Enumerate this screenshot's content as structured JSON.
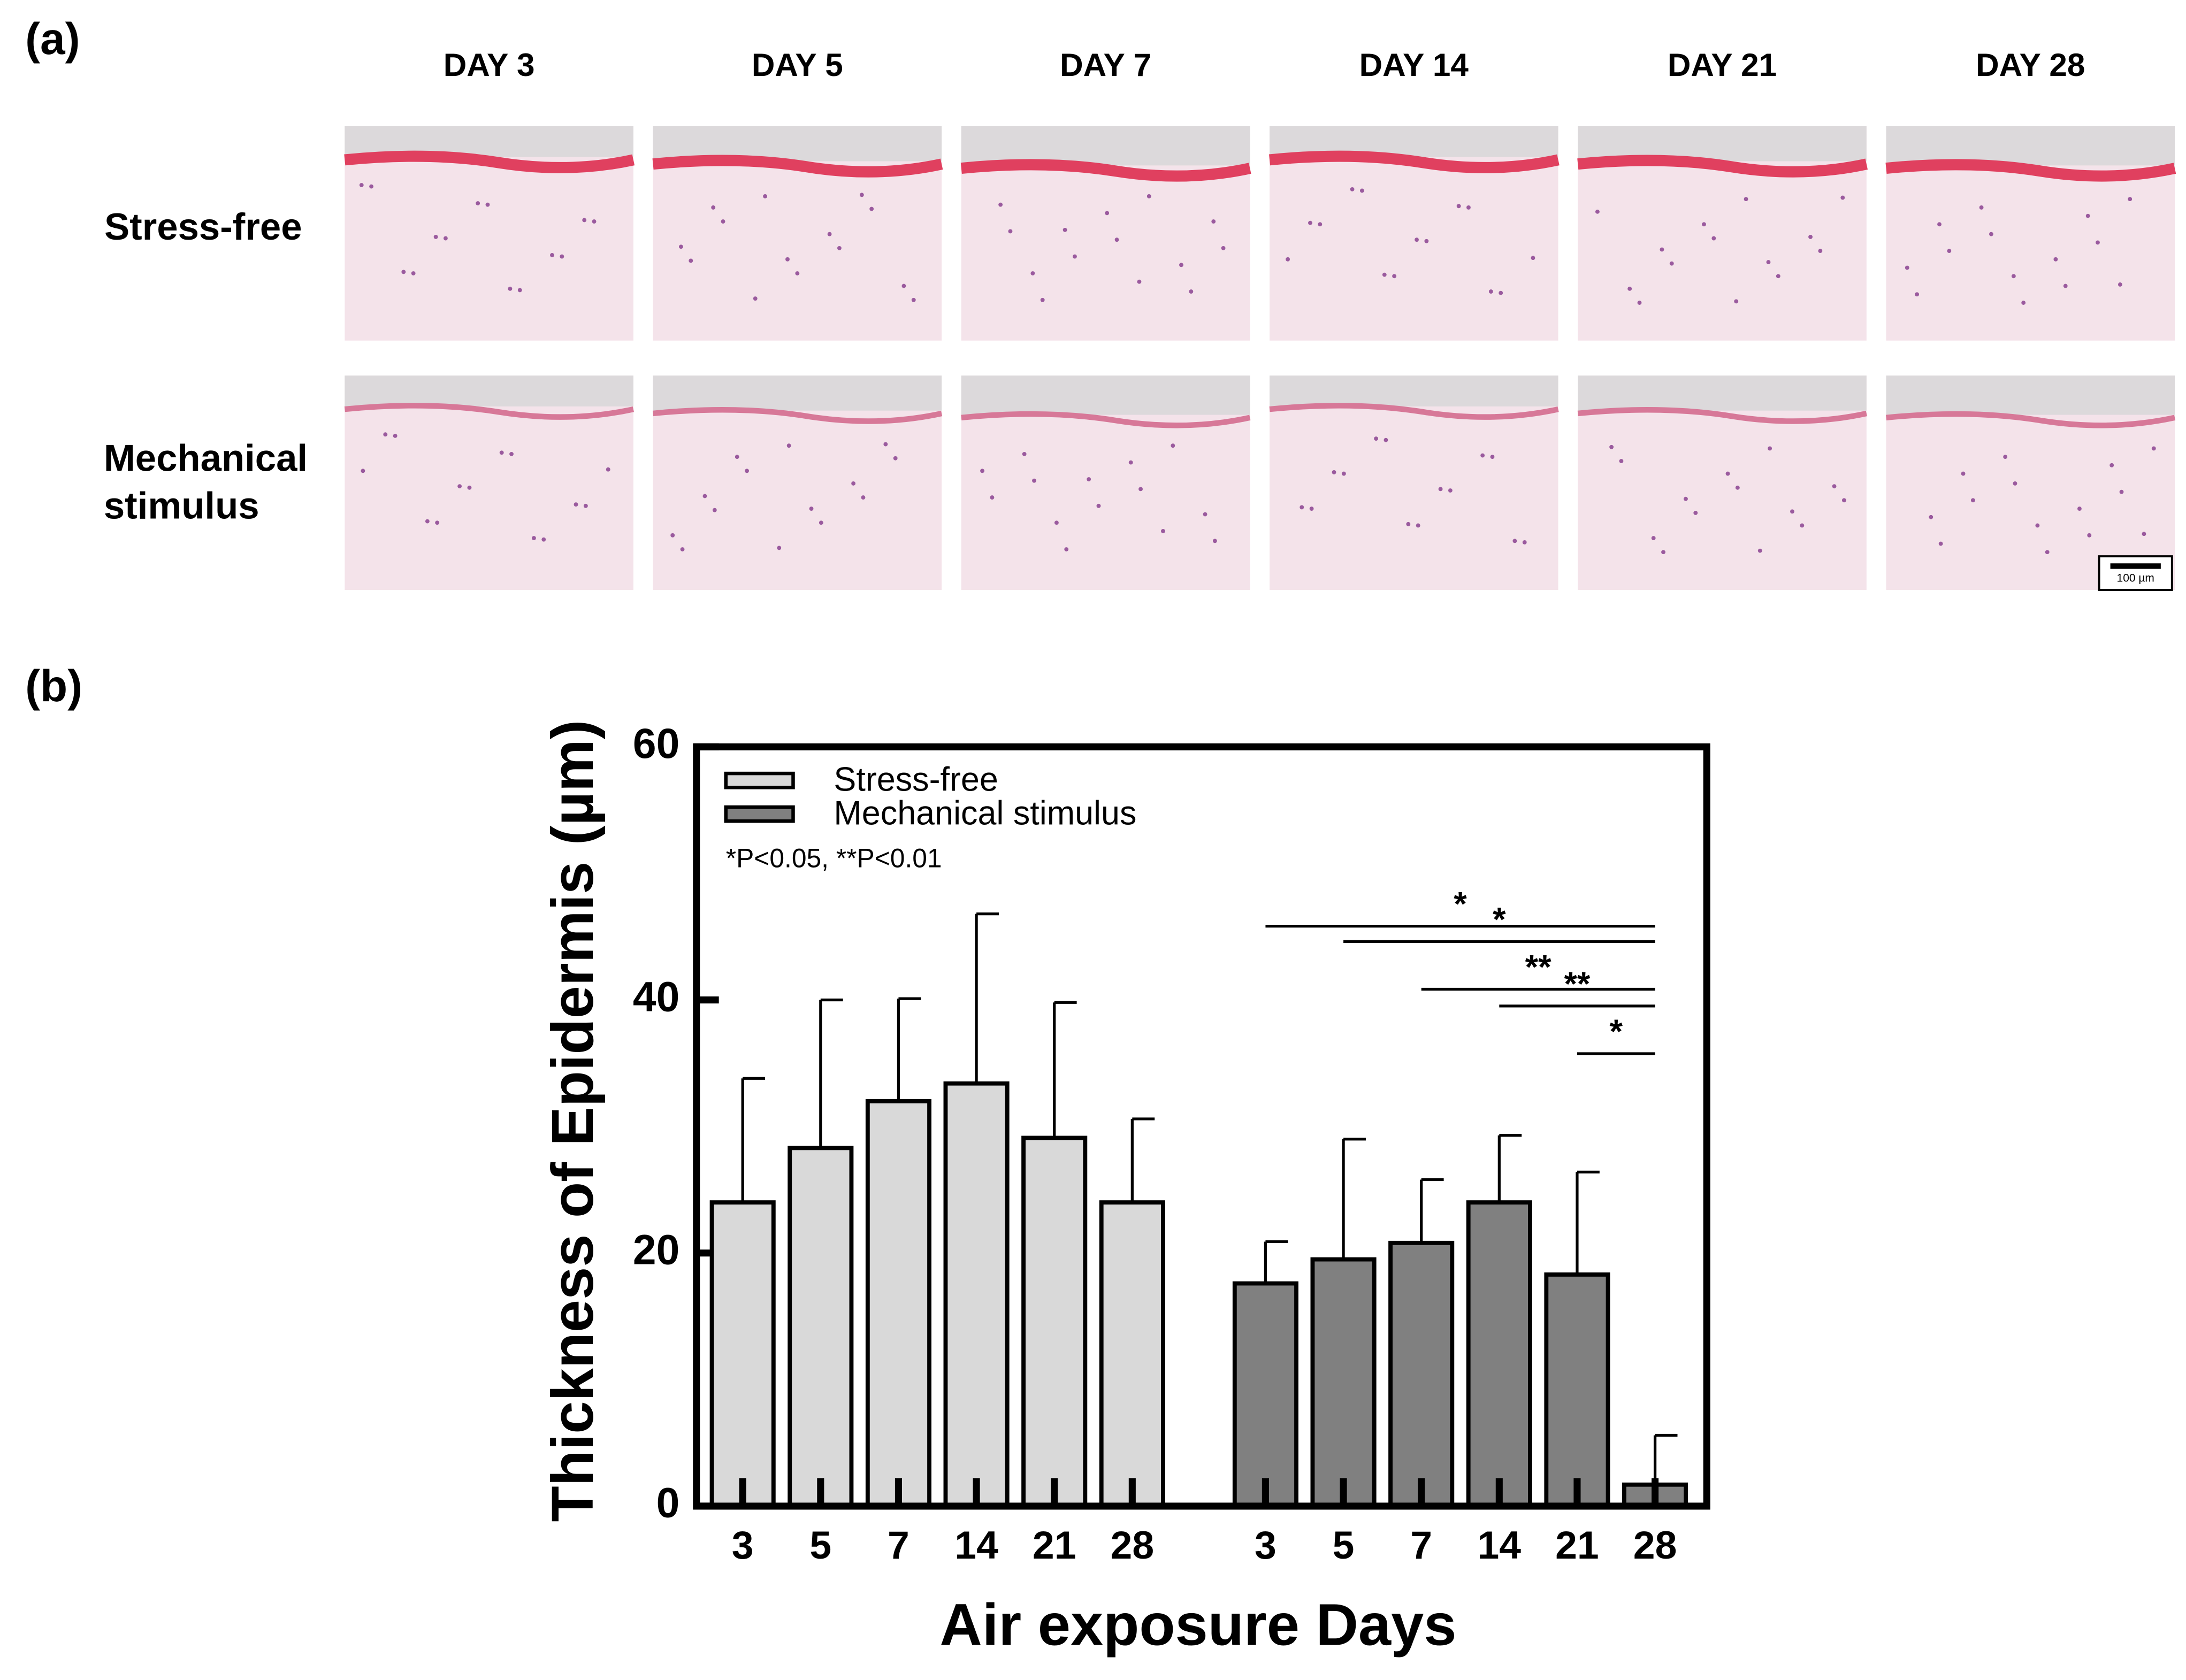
{
  "panel_a": {
    "label": "(a)",
    "columns": [
      "DAY 3",
      "DAY 5",
      "DAY 7",
      "DAY 14",
      "DAY 21",
      "DAY 28"
    ],
    "rows": [
      "Stress-free",
      "Mechanical stimulus"
    ],
    "scale_bar": "100 µm"
  },
  "chart_data": {
    "type": "bar",
    "panel_label": "(b)",
    "y_label": "Thickness of Epidermis (µm)",
    "x_label": "Air exposure Days",
    "note": "*P<0.05,  **P<0.01",
    "categories": [
      "3",
      "5",
      "7",
      "14",
      "21",
      "28",
      "3",
      "5",
      "7",
      "14",
      "21",
      "28"
    ],
    "series": [
      {
        "name": "Stress-free",
        "color": "#d9d9d9",
        "values": [
          24,
          28.3,
          32,
          33.4,
          29.1,
          24,
          null,
          null,
          null,
          null,
          null,
          null
        ],
        "errors": [
          9.8,
          11.7,
          8.1,
          13.4,
          10.7,
          6.6,
          null,
          null,
          null,
          null,
          null,
          null
        ]
      },
      {
        "name": "Mechanical stimulus",
        "color": "#808080",
        "values": [
          null,
          null,
          null,
          null,
          null,
          null,
          17.6,
          19.5,
          20.8,
          24,
          18.3,
          1.7
        ],
        "errors": [
          null,
          null,
          null,
          null,
          null,
          null,
          3.3,
          9.5,
          5,
          5.3,
          8.1,
          3.9
        ]
      }
    ],
    "significance": [
      {
        "from": 6,
        "to": 11,
        "label": "*"
      },
      {
        "from": 7,
        "to": 11,
        "label": "*"
      },
      {
        "from": 8,
        "to": 11,
        "label": "**"
      },
      {
        "from": 9,
        "to": 11,
        "label": "**"
      },
      {
        "from": 10,
        "to": 11,
        "label": "*"
      }
    ],
    "ylim": [
      0,
      60
    ],
    "yticks": [
      0,
      20,
      40,
      60
    ]
  }
}
